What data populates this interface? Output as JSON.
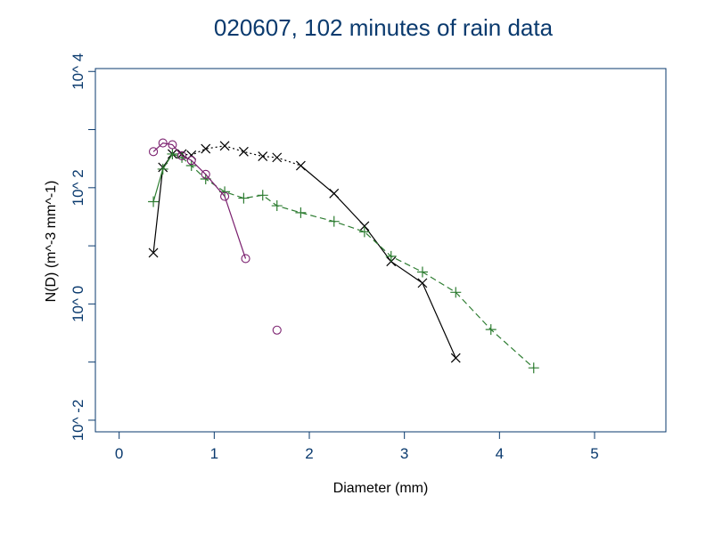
{
  "chart_data": {
    "type": "scatter",
    "title": "020607, 102 minutes of rain data",
    "xlabel": "Diameter (mm)",
    "ylabel": "N(D) (m^-3 mm^-1)",
    "xlim": [
      -0.25,
      5.75
    ],
    "ylim_log10": [
      -2.2,
      4.05
    ],
    "y_scale": "log",
    "grid": false,
    "legend": "none",
    "x_ticks": [
      0,
      1,
      2,
      3,
      4,
      5
    ],
    "x_tick_labels": [
      "0",
      "1",
      "2",
      "3",
      "4",
      "5"
    ],
    "y_ticks_log10": [
      -2,
      0,
      2,
      4
    ],
    "y_tick_labels": [
      "10^ -2",
      "10^ 0",
      "10^ 2",
      "10^ 4"
    ],
    "y_minor_ticks_log10": [
      -1,
      1,
      3
    ],
    "series": [
      {
        "marker": "x",
        "color": "#000000",
        "points": [
          {
            "x": 0.36,
            "log10_y": 0.88
          },
          {
            "x": 0.46,
            "log10_y": 2.35
          },
          {
            "x": 0.56,
            "log10_y": 2.58
          },
          {
            "x": 0.66,
            "log10_y": 2.58
          },
          {
            "x": 0.76,
            "log10_y": 2.56
          },
          {
            "x": 0.91,
            "log10_y": 2.67
          },
          {
            "x": 1.11,
            "log10_y": 2.72
          },
          {
            "x": 1.31,
            "log10_y": 2.62
          },
          {
            "x": 1.51,
            "log10_y": 2.54
          },
          {
            "x": 1.66,
            "log10_y": 2.52
          },
          {
            "x": 1.91,
            "log10_y": 2.38
          },
          {
            "x": 2.26,
            "log10_y": 1.9
          },
          {
            "x": 2.58,
            "log10_y": 1.34
          },
          {
            "x": 2.86,
            "log10_y": 0.73
          },
          {
            "x": 3.19,
            "log10_y": 0.36
          },
          {
            "x": 3.54,
            "log10_y": -0.93
          }
        ],
        "segments": [
          {
            "from": 0,
            "to": 1,
            "dash": "solid"
          },
          {
            "from": 1,
            "to": 2,
            "dash": "solid"
          },
          {
            "from": 2,
            "to": 10,
            "dash": "dotted"
          },
          {
            "from": 10,
            "to": 15,
            "dash": "solid"
          }
        ]
      },
      {
        "marker": "plus",
        "color": "#2e7d32",
        "points": [
          {
            "x": 0.36,
            "log10_y": 1.76
          },
          {
            "x": 0.46,
            "log10_y": 2.32
          },
          {
            "x": 0.56,
            "log10_y": 2.58
          },
          {
            "x": 0.66,
            "log10_y": 2.52
          },
          {
            "x": 0.76,
            "log10_y": 2.38
          },
          {
            "x": 0.91,
            "log10_y": 2.15
          },
          {
            "x": 1.11,
            "log10_y": 1.93
          },
          {
            "x": 1.31,
            "log10_y": 1.82
          },
          {
            "x": 1.51,
            "log10_y": 1.87
          },
          {
            "x": 1.66,
            "log10_y": 1.69
          },
          {
            "x": 1.91,
            "log10_y": 1.57
          },
          {
            "x": 2.26,
            "log10_y": 1.42
          },
          {
            "x": 2.58,
            "log10_y": 1.24
          },
          {
            "x": 2.86,
            "log10_y": 0.82
          },
          {
            "x": 3.19,
            "log10_y": 0.55
          },
          {
            "x": 3.54,
            "log10_y": 0.2
          },
          {
            "x": 3.91,
            "log10_y": -0.44
          },
          {
            "x": 4.36,
            "log10_y": -1.1
          }
        ],
        "segments": [
          {
            "from": 0,
            "to": 2,
            "dash": "solid"
          },
          {
            "from": 2,
            "to": 17,
            "dash": "dashed"
          }
        ]
      },
      {
        "marker": "circle",
        "color": "#7a1f6e",
        "points": [
          {
            "x": 0.36,
            "log10_y": 2.62
          },
          {
            "x": 0.46,
            "log10_y": 2.77
          },
          {
            "x": 0.56,
            "log10_y": 2.74
          },
          {
            "x": 0.66,
            "log10_y": 2.55
          },
          {
            "x": 0.76,
            "log10_y": 2.47
          },
          {
            "x": 0.91,
            "log10_y": 2.23
          },
          {
            "x": 1.11,
            "log10_y": 1.85
          },
          {
            "x": 1.33,
            "log10_y": 0.78
          },
          {
            "x": 1.66,
            "log10_y": -0.45
          }
        ],
        "segments": [
          {
            "from": 0,
            "to": 7,
            "dash": "solid"
          }
        ]
      }
    ]
  }
}
